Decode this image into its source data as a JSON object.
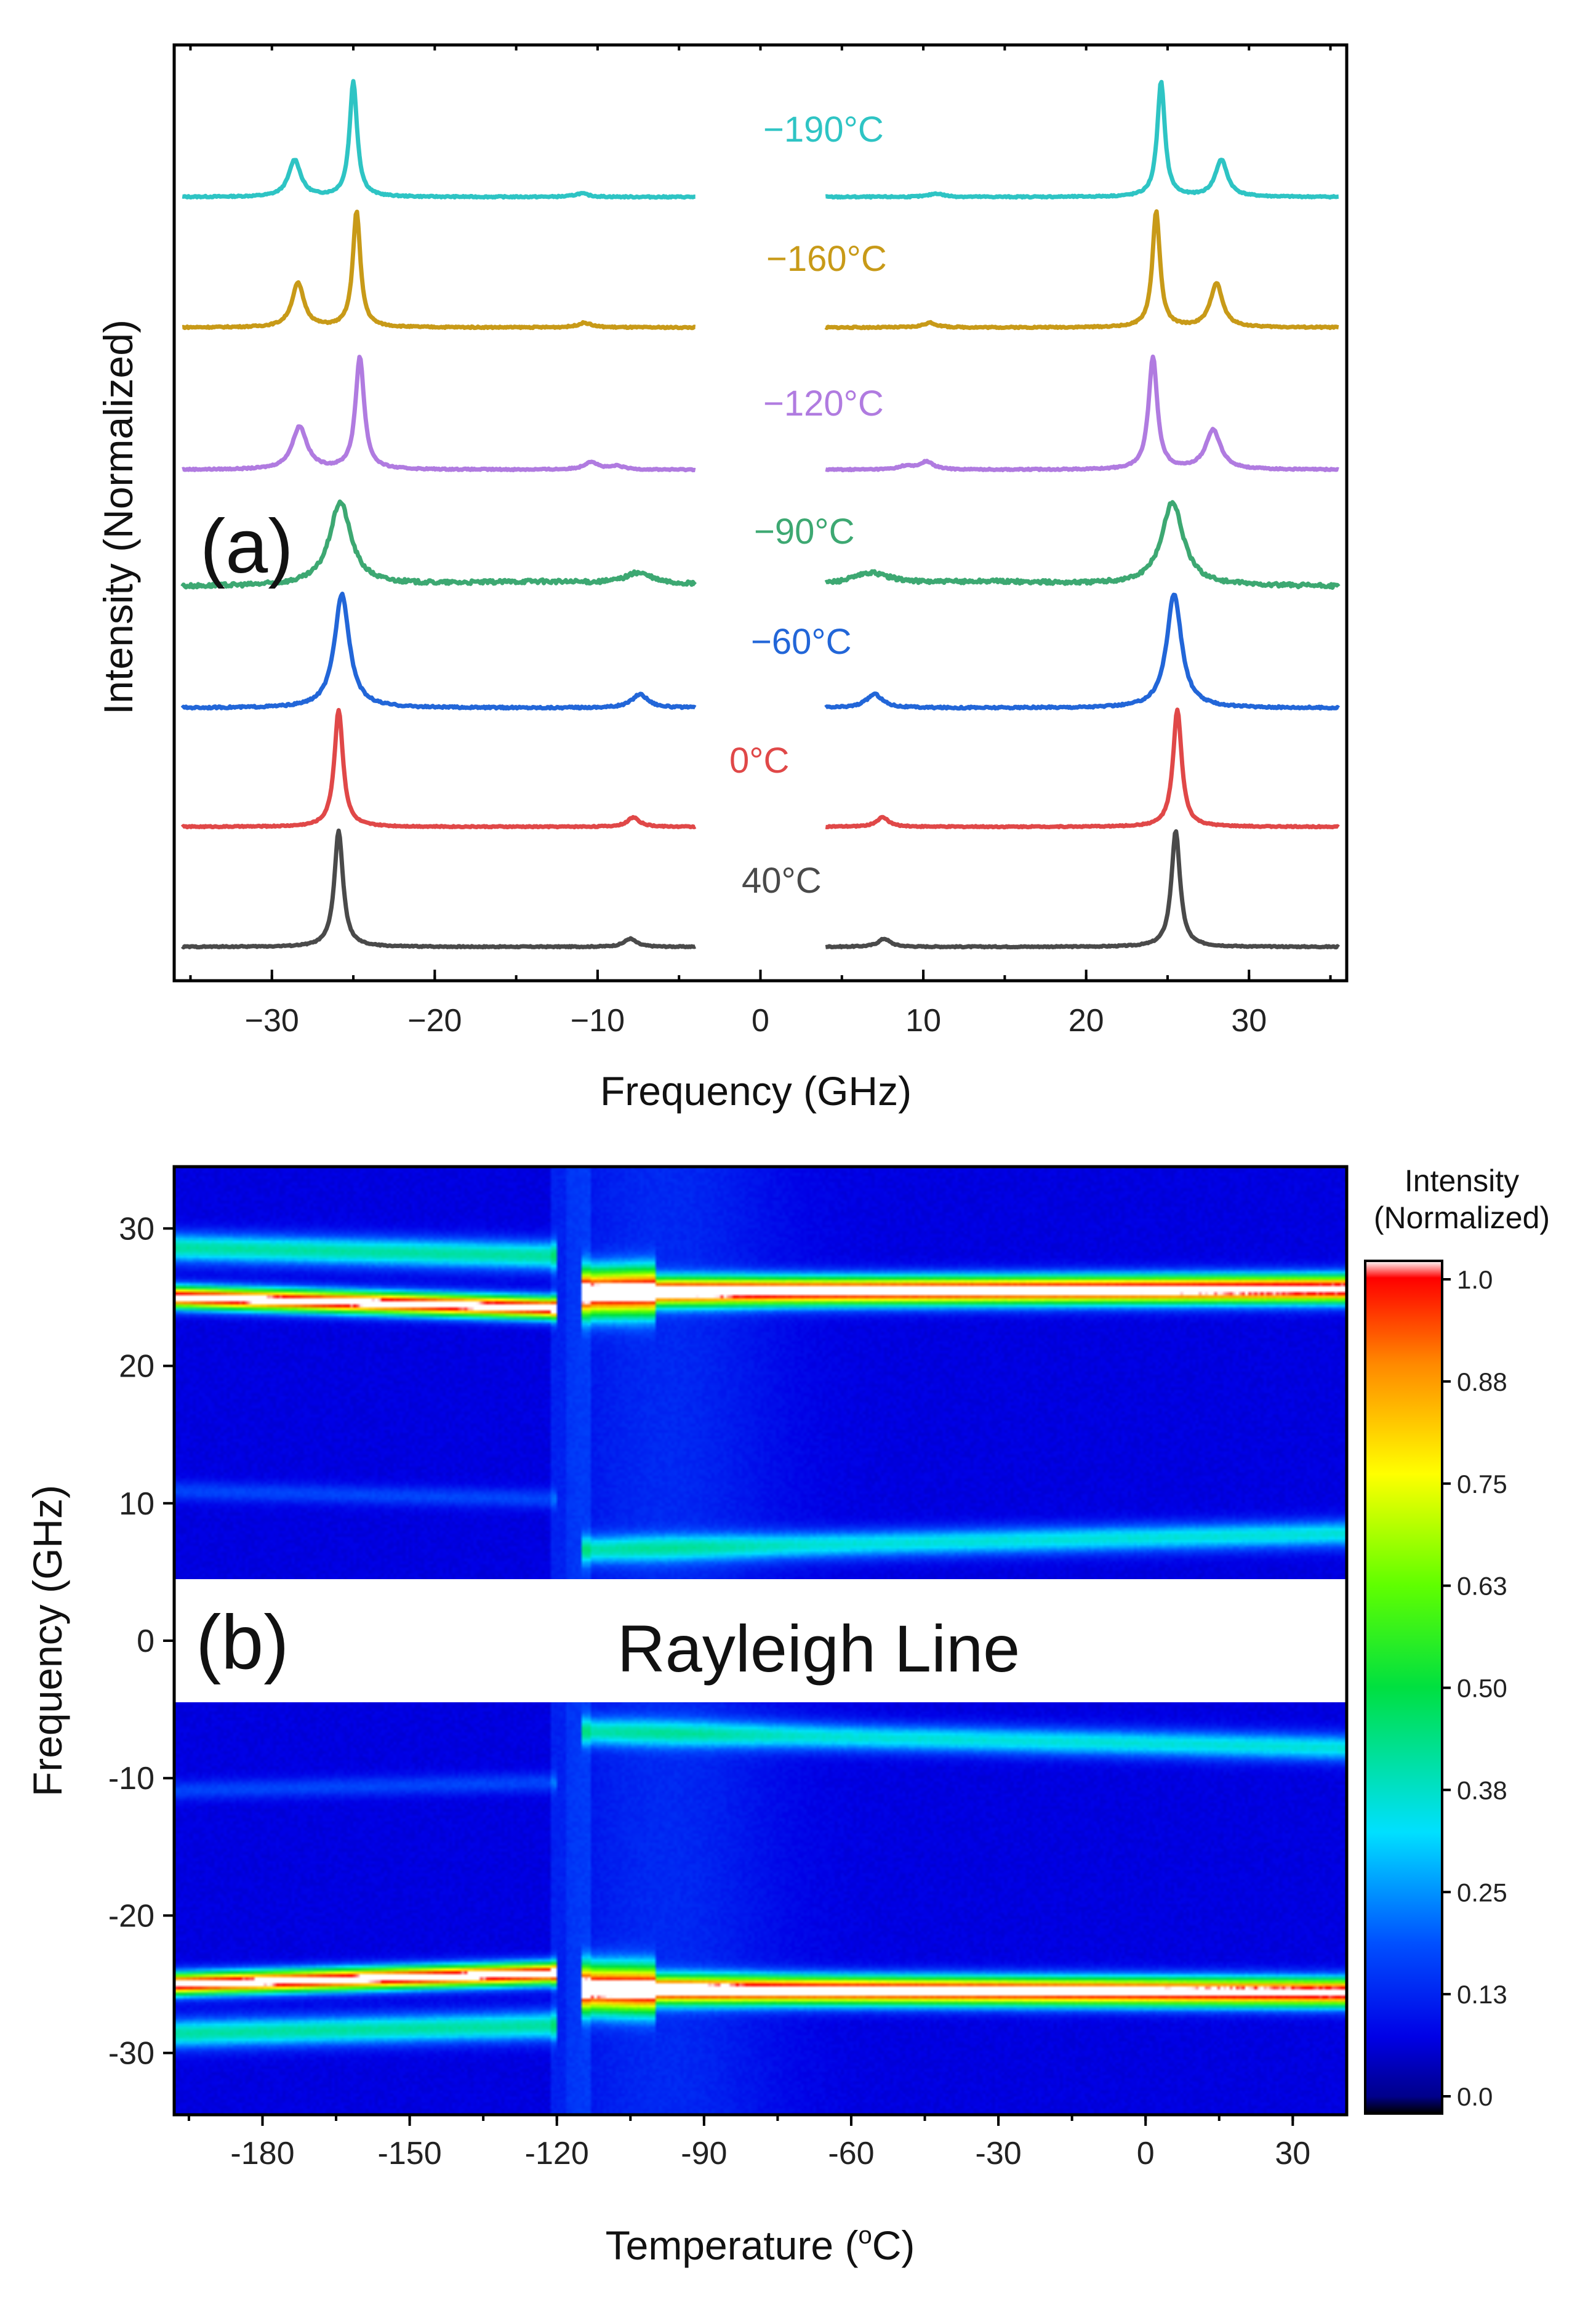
{
  "chart_data": [
    {
      "type": "line",
      "panel_label": "(a)",
      "xlabel": "Frequency (GHz)",
      "ylabel": "Intensity (Normalized)",
      "xlim": [
        -36,
        36
      ],
      "xticks": [
        "−30",
        "−20",
        "−10",
        "0",
        "10",
        "20",
        "30"
      ],
      "xtick_values": [
        -30,
        -20,
        -10,
        0,
        10,
        20,
        30
      ],
      "gap": [
        -4,
        4
      ],
      "series": [
        {
          "name": "−190°C",
          "color": "#2ec4c4",
          "noise": 0.006,
          "peaks": [
            [
              -28.6,
              0.32,
              0.45
            ],
            [
              -25.0,
              1.0,
              0.28
            ],
            [
              -11.0,
              0.03,
              0.5
            ],
            [
              10.8,
              0.03,
              0.5
            ],
            [
              24.6,
              1.0,
              0.28
            ],
            [
              28.3,
              0.32,
              0.45
            ]
          ],
          "label": "−190°C"
        },
        {
          "name": "−160°C",
          "color": "#c89a18",
          "noise": 0.006,
          "peaks": [
            [
              -28.4,
              0.38,
              0.45
            ],
            [
              -24.8,
              1.0,
              0.28
            ],
            [
              -10.8,
              0.04,
              0.5
            ],
            [
              10.4,
              0.04,
              0.5
            ],
            [
              24.3,
              1.0,
              0.28
            ],
            [
              28.0,
              0.38,
              0.45
            ]
          ],
          "label": "−160°C"
        },
        {
          "name": "−120°C",
          "color": "#b07be0",
          "noise": 0.006,
          "peaks": [
            [
              -28.3,
              0.38,
              0.55
            ],
            [
              -24.6,
              1.0,
              0.32
            ],
            [
              -10.4,
              0.07,
              0.5
            ],
            [
              -8.8,
              0.03,
              0.5
            ],
            [
              8.9,
              0.03,
              0.5
            ],
            [
              10.2,
              0.07,
              0.5
            ],
            [
              24.1,
              1.0,
              0.32
            ],
            [
              27.8,
              0.35,
              0.55
            ]
          ],
          "label": "−120°C"
        },
        {
          "name": "−90°C",
          "color": "#3da872",
          "noise": 0.02,
          "base": 0.1,
          "peaks": [
            [
              -25.8,
              0.9,
              0.8
            ],
            [
              -7.5,
              0.12,
              1.0
            ],
            [
              6.8,
              0.12,
              1.4
            ],
            [
              25.3,
              0.9,
              0.8
            ]
          ],
          "label": "−90°C"
        },
        {
          "name": "−60°C",
          "color": "#2266d8",
          "noise": 0.008,
          "peaks": [
            [
              -25.7,
              1.0,
              0.55
            ],
            [
              -7.4,
              0.12,
              0.6
            ],
            [
              7.0,
              0.12,
              0.6
            ],
            [
              25.4,
              1.0,
              0.55
            ]
          ],
          "label": "−60°C"
        },
        {
          "name": "0°C",
          "color": "#e04848",
          "noise": 0.005,
          "peaks": [
            [
              -25.9,
              1.0,
              0.32
            ],
            [
              -7.8,
              0.08,
              0.45
            ],
            [
              7.5,
              0.08,
              0.45
            ],
            [
              25.6,
              1.0,
              0.32
            ]
          ],
          "label": "0°C"
        },
        {
          "name": "40°C",
          "color": "#4a4a4a",
          "noise": 0.005,
          "peaks": [
            [
              -25.9,
              1.0,
              0.32
            ],
            [
              -8.0,
              0.07,
              0.45
            ],
            [
              7.6,
              0.07,
              0.45
            ],
            [
              25.5,
              1.0,
              0.32
            ]
          ],
          "label": "40°C"
        }
      ]
    },
    {
      "type": "heatmap",
      "panel_label": "(b)",
      "xlabel_main": "Temperature (",
      "xlabel_degree": "o",
      "xlabel_unit": "C)",
      "ylabel": "Frequency (GHz)",
      "xlim": [
        -198,
        41
      ],
      "ylim": [
        -34.5,
        34.5
      ],
      "xticks": [
        "-180",
        "-150",
        "-120",
        "-90",
        "-60",
        "-30",
        "0",
        "30"
      ],
      "xtick_values": [
        -180,
        -150,
        -120,
        -90,
        -60,
        -30,
        0,
        30
      ],
      "yticks": [
        "30",
        "20",
        "10",
        "0",
        "-10",
        "-20",
        "-30"
      ],
      "ytick_values": [
        30,
        20,
        10,
        0,
        -10,
        -20,
        -30
      ],
      "masked_band": [
        -4.5,
        4.5
      ],
      "annotation": "Rayleigh Line",
      "bands": [
        {
          "t": [
            -198,
            -120
          ],
          "f": [
            25.0,
            24.2
          ],
          "amp": 1.0,
          "sigma": 0.55
        },
        {
          "t": [
            -198,
            -120
          ],
          "f": [
            28.6,
            28.0
          ],
          "amp": 0.33,
          "sigma": 0.75
        },
        {
          "t": [
            -115,
            -100
          ],
          "f": [
            25.3,
            25.4
          ],
          "amp": 1.0,
          "sigma": 1.15
        },
        {
          "t": [
            -100,
            41
          ],
          "f": [
            25.4,
            25.6
          ],
          "amp": 1.0,
          "sigma": 0.7
        },
        {
          "t": [
            -198,
            -120
          ],
          "f": [
            10.9,
            10.3
          ],
          "amp": 0.1,
          "sigma": 0.5
        },
        {
          "t": [
            -115,
            41
          ],
          "f": [
            6.6,
            7.8
          ],
          "amp": 0.28,
          "sigma": 0.7
        }
      ],
      "colorbar": {
        "title_line1": "Intensity",
        "title_line2": "(Normalized)",
        "ticks": [
          "1.0",
          "0.88",
          "0.75",
          "0.63",
          "0.50",
          "0.38",
          "0.25",
          "0.13",
          "0.0"
        ],
        "tick_values": [
          1.0,
          0.875,
          0.75,
          0.625,
          0.5,
          0.375,
          0.25,
          0.125,
          0.0
        ]
      }
    }
  ]
}
